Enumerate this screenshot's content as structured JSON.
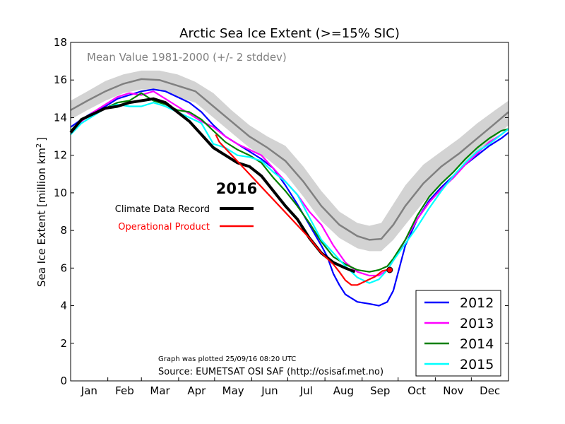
{
  "chart_data": {
    "type": "line",
    "title": "Arctic Sea Ice Extent (>=15% SIC)",
    "ylabel": "Sea Ice Extent [million km²]",
    "ylabel_main": "Sea Ice Extent [million km",
    "ylabel_sup": "2",
    "ylabel_close": "]",
    "ylim": [
      0,
      18
    ],
    "yticks": [
      "0",
      "2",
      "4",
      "6",
      "8",
      "10",
      "12",
      "14",
      "16",
      "18"
    ],
    "x_range_days": [
      1,
      366
    ],
    "months": [
      "Jan",
      "Feb",
      "Mar",
      "Apr",
      "May",
      "Jun",
      "Jul",
      "Aug",
      "Sep",
      "Oct",
      "Nov",
      "Dec"
    ],
    "mean_label": "Mean Value 1981-2000 (+/- 2 stddev)",
    "year_label": "2016",
    "legend_2016": [
      {
        "label": "Climate Data Record",
        "color": "#000000"
      },
      {
        "label": "Operational Product",
        "color": "#ff0000"
      }
    ],
    "plotted_note": "Graph was plotted 25/09/16 08:20 UTC",
    "source_note": "Source: EUMETSAT OSI SAF (http://osisaf.met.no)",
    "legend_placement": "bottom-right",
    "grid": false,
    "mean": {
      "color": "#808080",
      "band_color": "#d3d3d3",
      "x": [
        1,
        15,
        30,
        45,
        60,
        75,
        90,
        105,
        120,
        135,
        150,
        165,
        180,
        195,
        210,
        225,
        240,
        250,
        260,
        270,
        280,
        295,
        310,
        325,
        340,
        355,
        366
      ],
      "y": [
        14.4,
        14.9,
        15.4,
        15.8,
        16.05,
        16.0,
        15.7,
        15.4,
        14.6,
        13.8,
        13.0,
        12.4,
        11.7,
        10.6,
        9.3,
        8.3,
        7.7,
        7.5,
        7.55,
        8.3,
        9.3,
        10.5,
        11.4,
        12.1,
        12.9,
        13.7,
        14.3
      ],
      "upper": [
        14.9,
        15.4,
        15.95,
        16.3,
        16.5,
        16.5,
        16.3,
        15.9,
        15.3,
        14.4,
        13.6,
        13.0,
        12.5,
        11.4,
        10.1,
        9.0,
        8.4,
        8.25,
        8.4,
        9.4,
        10.4,
        11.5,
        12.2,
        12.9,
        13.7,
        14.4,
        14.9
      ],
      "lower": [
        13.9,
        14.4,
        14.9,
        15.3,
        15.5,
        15.5,
        15.1,
        14.8,
        14.0,
        13.2,
        12.4,
        11.8,
        11.0,
        9.8,
        8.5,
        7.6,
        7.05,
        6.9,
        6.9,
        7.5,
        8.3,
        9.5,
        10.5,
        11.4,
        12.2,
        13.0,
        13.6
      ]
    },
    "series": [
      {
        "name": "2012",
        "color": "#0000ff",
        "x": [
          1,
          10,
          20,
          30,
          40,
          50,
          60,
          70,
          80,
          90,
          100,
          110,
          120,
          130,
          140,
          150,
          160,
          170,
          180,
          190,
          200,
          210,
          215,
          220,
          225,
          230,
          240,
          250,
          258,
          265,
          270,
          275,
          280,
          290,
          300,
          310,
          320,
          330,
          340,
          350,
          360,
          366
        ],
        "y": [
          13.5,
          13.9,
          14.3,
          14.6,
          15.0,
          15.2,
          15.4,
          15.5,
          15.4,
          15.1,
          14.8,
          14.3,
          13.6,
          13.0,
          12.6,
          12.2,
          11.8,
          11.3,
          10.4,
          9.4,
          8.3,
          7.2,
          6.6,
          5.7,
          5.1,
          4.6,
          4.2,
          4.1,
          4.0,
          4.2,
          4.8,
          6.0,
          7.2,
          8.6,
          9.6,
          10.3,
          10.9,
          11.5,
          12.0,
          12.5,
          12.9,
          13.2
        ]
      },
      {
        "name": "2013",
        "color": "#ff00ff",
        "x": [
          1,
          10,
          20,
          30,
          40,
          50,
          60,
          70,
          80,
          90,
          100,
          110,
          120,
          130,
          140,
          150,
          160,
          170,
          180,
          190,
          200,
          210,
          220,
          230,
          240,
          250,
          258,
          265,
          270,
          280,
          290,
          300,
          310,
          320,
          330,
          340,
          350,
          360,
          366
        ],
        "y": [
          13.3,
          13.8,
          14.3,
          14.7,
          15.1,
          15.3,
          15.2,
          15.4,
          15.0,
          14.6,
          14.2,
          13.8,
          13.5,
          13.0,
          12.6,
          12.3,
          12.0,
          11.3,
          10.6,
          9.9,
          9.0,
          8.3,
          7.2,
          6.3,
          5.8,
          5.6,
          5.6,
          5.9,
          6.4,
          7.5,
          8.6,
          9.5,
          10.2,
          10.8,
          11.5,
          12.1,
          12.7,
          13.1,
          13.4
        ]
      },
      {
        "name": "2014",
        "color": "#008000",
        "x": [
          1,
          10,
          20,
          30,
          40,
          50,
          60,
          70,
          80,
          90,
          100,
          110,
          120,
          130,
          140,
          150,
          160,
          170,
          180,
          190,
          200,
          210,
          220,
          230,
          240,
          250,
          258,
          265,
          270,
          280,
          290,
          300,
          310,
          320,
          330,
          340,
          350,
          360,
          366
        ],
        "y": [
          13.3,
          13.9,
          14.2,
          14.5,
          14.8,
          14.9,
          15.3,
          14.9,
          14.7,
          14.4,
          14.3,
          13.9,
          13.3,
          12.7,
          12.3,
          12.0,
          11.6,
          10.8,
          10.1,
          9.3,
          8.4,
          7.4,
          6.6,
          6.2,
          5.9,
          5.8,
          5.9,
          6.1,
          6.5,
          7.5,
          8.8,
          9.8,
          10.5,
          11.1,
          11.8,
          12.4,
          12.9,
          13.3,
          13.4
        ]
      },
      {
        "name": "2015",
        "color": "#00ffff",
        "x": [
          1,
          10,
          20,
          30,
          40,
          50,
          60,
          70,
          80,
          90,
          100,
          110,
          120,
          130,
          140,
          150,
          160,
          170,
          180,
          190,
          200,
          210,
          220,
          230,
          240,
          250,
          258,
          265,
          270,
          280,
          290,
          300,
          310,
          320,
          330,
          340,
          350,
          360,
          366
        ],
        "y": [
          13.1,
          13.7,
          14.1,
          14.5,
          14.7,
          14.6,
          14.6,
          14.8,
          14.6,
          14.3,
          14.0,
          13.7,
          12.6,
          12.4,
          12.0,
          11.9,
          11.7,
          11.1,
          10.6,
          9.9,
          8.7,
          7.5,
          6.8,
          6.1,
          5.5,
          5.2,
          5.4,
          5.9,
          6.4,
          7.3,
          8.2,
          9.2,
          10.1,
          10.9,
          11.6,
          12.2,
          12.6,
          13.1,
          13.4
        ]
      },
      {
        "name": "2016",
        "color": "#000000",
        "thick": true,
        "x": [
          1,
          10,
          20,
          30,
          40,
          50,
          60,
          70,
          80,
          90,
          100,
          110,
          120,
          130,
          140,
          150,
          160,
          170,
          180,
          190,
          200,
          210,
          220,
          230,
          238
        ],
        "y": [
          13.2,
          13.9,
          14.2,
          14.5,
          14.6,
          14.8,
          14.9,
          15.0,
          14.8,
          14.3,
          13.8,
          13.1,
          12.4,
          12.0,
          11.6,
          11.4,
          10.9,
          10.1,
          9.3,
          8.6,
          7.6,
          6.8,
          6.3,
          6.0,
          5.8
        ]
      },
      {
        "name": "2016 operational",
        "color": "#ff0000",
        "x": [
          122,
          125,
          128,
          200,
          210,
          220,
          225,
          230,
          235,
          240,
          245,
          250,
          255,
          258,
          261,
          265,
          267
        ],
        "y": [
          13.1,
          12.7,
          12.5,
          7.6,
          6.8,
          6.2,
          5.8,
          5.35,
          5.1,
          5.1,
          5.25,
          5.4,
          5.55,
          5.7,
          5.85,
          5.9,
          5.9
        ],
        "marker": {
          "x": 267,
          "y": 5.9
        }
      }
    ]
  }
}
